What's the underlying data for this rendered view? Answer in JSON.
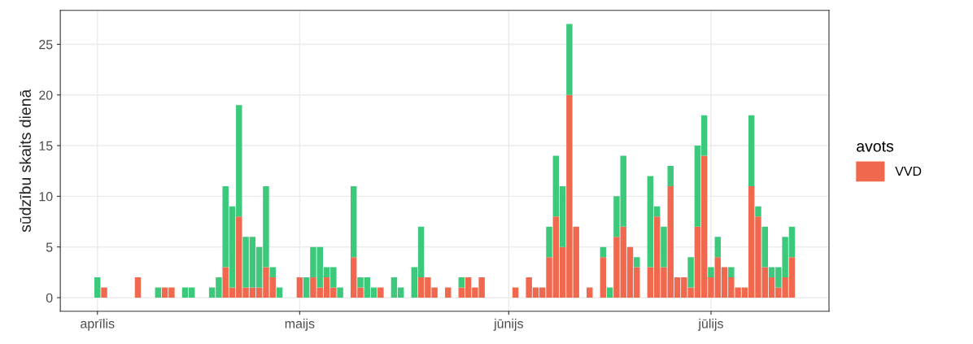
{
  "chart_data": {
    "type": "bar",
    "stacked": true,
    "ylabel": "sūdzību skaits dienā",
    "legend_title": "avots",
    "legend": "right",
    "grid": true,
    "categories": [
      null,
      null,
      null,
      null,
      "aprīlis",
      null,
      null,
      null,
      null,
      null,
      null,
      null,
      null,
      null,
      null,
      null,
      null,
      null,
      null,
      null,
      null,
      null,
      null,
      null,
      null,
      null,
      null,
      null,
      null,
      null,
      null,
      null,
      null,
      null,
      "maijs",
      null,
      null,
      null,
      null,
      null,
      null,
      null,
      null,
      null,
      null,
      null,
      null,
      null,
      null,
      null,
      null,
      null,
      null,
      null,
      null,
      null,
      null,
      null,
      null,
      null,
      null,
      null,
      null,
      null,
      null,
      "jūnijs",
      null,
      null,
      null,
      null,
      null,
      null,
      null,
      null,
      null,
      null,
      null,
      null,
      null,
      null,
      null,
      null,
      null,
      null,
      null,
      null,
      null,
      null,
      null,
      null,
      null,
      null,
      null,
      null,
      null,
      "jūlijs",
      null,
      null,
      null,
      null,
      null,
      null,
      null,
      null,
      null,
      null,
      null,
      null,
      null,
      null,
      null,
      null
    ],
    "series": [
      {
        "name": "VVD",
        "color": "#f0694f",
        "values": [
          null,
          null,
          null,
          null,
          0,
          1,
          null,
          null,
          null,
          null,
          2,
          null,
          null,
          0,
          1,
          1,
          null,
          0,
          0,
          null,
          null,
          0,
          0,
          3,
          1,
          8,
          1,
          1,
          1,
          3,
          2,
          0,
          null,
          null,
          2,
          0,
          2,
          1,
          2,
          1,
          0,
          null,
          4,
          1,
          0,
          0,
          1,
          null,
          0,
          0,
          null,
          0,
          2,
          2,
          1,
          null,
          1,
          null,
          1,
          2,
          1,
          2,
          null,
          null,
          null,
          null,
          1,
          null,
          2,
          1,
          1,
          4,
          8,
          5,
          20,
          7,
          null,
          1,
          null,
          4,
          0,
          6,
          7,
          5,
          3,
          null,
          3,
          8,
          3,
          11,
          2,
          2,
          1,
          7,
          14,
          2,
          4,
          3,
          2,
          1,
          1,
          11,
          8,
          3,
          2,
          1,
          2,
          4,
          null,
          null,
          null,
          null
        ]
      },
      {
        "color": "#3cc97c",
        "values": [
          null,
          null,
          null,
          null,
          2,
          0,
          null,
          null,
          null,
          null,
          0,
          null,
          null,
          1,
          0,
          0,
          null,
          1,
          1,
          null,
          null,
          1,
          2,
          8,
          8,
          11,
          5,
          5,
          4,
          8,
          1,
          1,
          null,
          null,
          0,
          2,
          3,
          4,
          1,
          2,
          1,
          null,
          7,
          1,
          2,
          1,
          0,
          null,
          2,
          1,
          null,
          3,
          5,
          0,
          0,
          null,
          0,
          null,
          1,
          0,
          0,
          0,
          null,
          null,
          null,
          null,
          0,
          null,
          0,
          0,
          0,
          3,
          6,
          6,
          7,
          0,
          null,
          0,
          null,
          1,
          1,
          4,
          7,
          0,
          1,
          null,
          9,
          1,
          4,
          2,
          0,
          0,
          3,
          8,
          4,
          1,
          2,
          0,
          1,
          0,
          0,
          7,
          1,
          4,
          1,
          2,
          4,
          3,
          null,
          null,
          null,
          null
        ]
      }
    ],
    "ylim": [
      -1.35,
      28.35
    ],
    "yticks": [
      0,
      5,
      10,
      15,
      20,
      25
    ]
  }
}
